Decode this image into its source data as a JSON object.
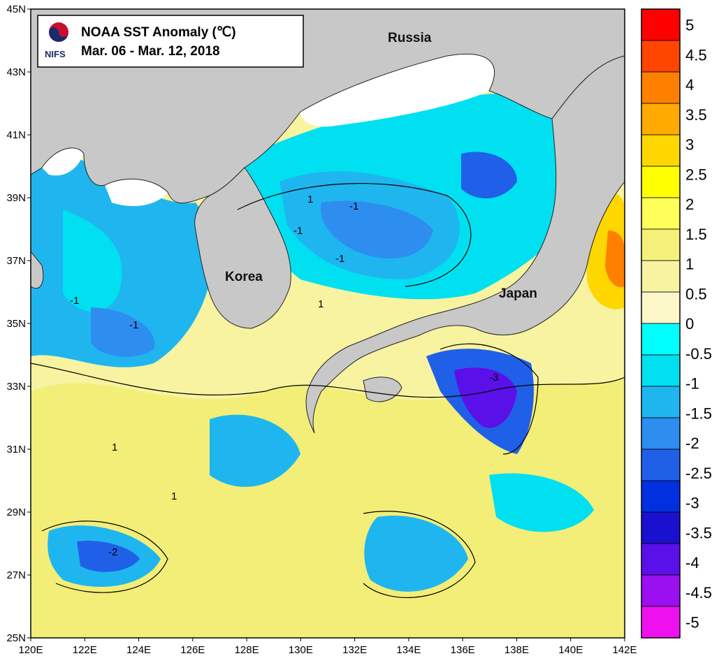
{
  "title": {
    "line1": "NOAA SST Anomaly (℃)",
    "line2": "Mar. 06 - Mar. 12,  2018",
    "logo_text": "NIFS"
  },
  "axes": {
    "lon_labels": [
      "120E",
      "122E",
      "124E",
      "126E",
      "128E",
      "130E",
      "132E",
      "134E",
      "136E",
      "138E",
      "140E",
      "142E"
    ],
    "lat_labels": [
      "45N",
      "43N",
      "41N",
      "39N",
      "37N",
      "35N",
      "33N",
      "31N",
      "29N",
      "27N",
      "25N"
    ]
  },
  "regions": {
    "russia": "Russia",
    "korea": "Korea",
    "japan": "Japan"
  },
  "colorbar": {
    "labels": [
      "5",
      "4.5",
      "4",
      "3.5",
      "3",
      "2.5",
      "2",
      "1.5",
      "1",
      "0.5",
      "0",
      "-0.5",
      "-1",
      "-1.5",
      "-2",
      "-2.5",
      "-3",
      "-3.5",
      "-4",
      "-4.5",
      "-5"
    ],
    "colors": [
      "#ff0000",
      "#ff4500",
      "#ff8000",
      "#ffaa00",
      "#ffd700",
      "#ffff00",
      "#ffff5a",
      "#f5f07a",
      "#f7f3a0",
      "#fbf7c8",
      "#00ffff",
      "#00e0f0",
      "#1fb6f0",
      "#2e8ef0",
      "#2060e8",
      "#0030e0",
      "#1a10d0",
      "#5a10e8",
      "#9a10f0",
      "#ee10ee"
    ]
  },
  "contour_labels": [
    "1",
    "-1",
    "-1",
    "-1",
    "1",
    "1",
    "-1",
    "-2",
    "-3",
    "1",
    "-1"
  ]
}
